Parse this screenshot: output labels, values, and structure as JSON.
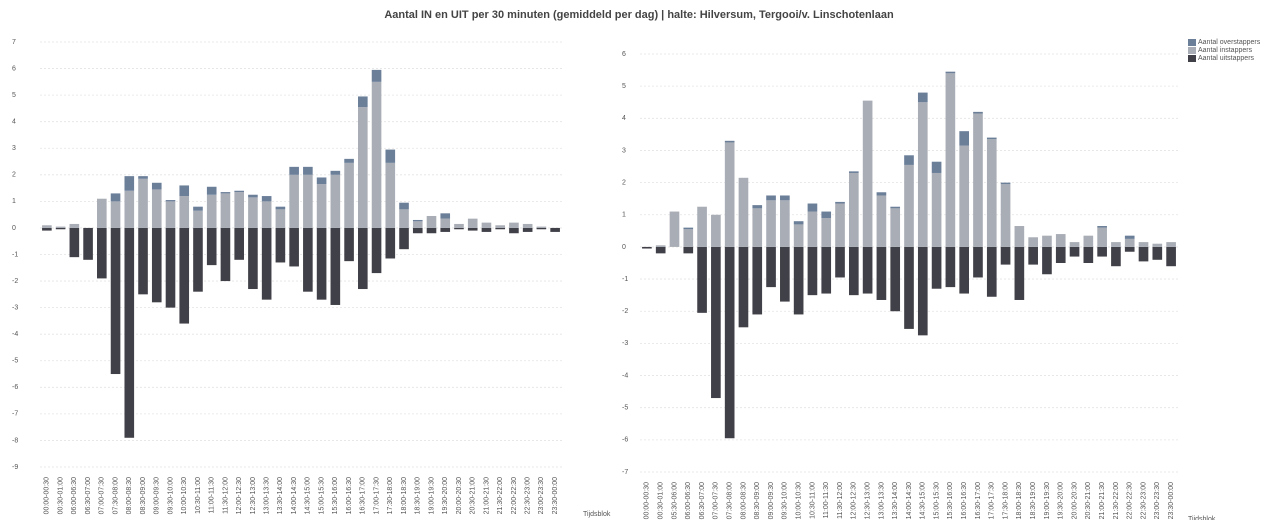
{
  "title": "Aantal IN en UIT per 30 minuten (gemiddeld per dag) | halte: Hilversum, Tergooi/v. Linschotenlaan",
  "chart_data": [
    {
      "type": "bar",
      "stacked": true,
      "x_label": "Tijdsblok",
      "grid": true,
      "ylim": [
        -9,
        7
      ],
      "yticks": [
        -9,
        -8,
        -7,
        -6,
        -5,
        -4,
        -3,
        -2,
        -1,
        0,
        1,
        2,
        3,
        4,
        5,
        6,
        7
      ],
      "categories": [
        "00:00-00:30",
        "00:30-01:00",
        "06:00-06:30",
        "06:30-07:00",
        "07:00-07:30",
        "07:30-08:00",
        "08:00-08:30",
        "08:30-09:00",
        "09:00-09:30",
        "09:30-10:00",
        "10:00-10:30",
        "10:30-11:00",
        "11:00-11:30",
        "11:30-12:00",
        "12:00-12:30",
        "12:30-13:00",
        "13:00-13:30",
        "13:30-14:00",
        "14:00-14:30",
        "14:30-15:00",
        "15:00-15:30",
        "15:30-16:00",
        "16:00-16:30",
        "16:30-17:00",
        "17:00-17:30",
        "17:30-18:00",
        "18:00-18:30",
        "18:30-19:00",
        "19:00-19:30",
        "19:30-20:00",
        "20:00-20:30",
        "20:30-21:00",
        "21:00-21:30",
        "21:30-22:00",
        "22:00-22:30",
        "22:30-23:00",
        "23:00-23:30",
        "23:30-00:00"
      ],
      "series": [
        {
          "color": "#6b7f99",
          "values": [
            0,
            0,
            0,
            0,
            0,
            0.3,
            0.55,
            0.1,
            0.25,
            0.05,
            0.4,
            0.15,
            0.3,
            0.05,
            0.05,
            0.1,
            0.2,
            0.1,
            0.3,
            0.3,
            0.25,
            0.15,
            0.15,
            0.4,
            0.45,
            0.5,
            0.25,
            0.05,
            0,
            0.2,
            0,
            0,
            0,
            0,
            0,
            0,
            0,
            0
          ]
        },
        {
          "color": "#a9adb5",
          "values": [
            0.1,
            0.05,
            0.15,
            0,
            1.1,
            1.0,
            1.4,
            1.85,
            1.45,
            1.0,
            1.2,
            0.65,
            1.25,
            1.3,
            1.35,
            1.15,
            1.0,
            0.7,
            2.0,
            2.0,
            1.65,
            2.0,
            2.45,
            4.55,
            5.5,
            2.45,
            0.7,
            0.25,
            0.45,
            0.35,
            0.15,
            0.35,
            0.2,
            0.1,
            0.2,
            0.15,
            0.05,
            0
          ]
        },
        {
          "color": "#404048",
          "values": [
            -0.1,
            -0.05,
            -1.1,
            -1.2,
            -1.9,
            -5.5,
            -7.9,
            -2.5,
            -2.8,
            -3.0,
            -3.6,
            -2.4,
            -1.4,
            -2.0,
            -1.2,
            -2.3,
            -2.7,
            -1.3,
            -1.45,
            -2.4,
            -2.7,
            -2.9,
            -1.25,
            -2.3,
            -1.7,
            -1.15,
            -0.8,
            -0.2,
            -0.2,
            -0.15,
            -0.05,
            -0.1,
            -0.15,
            -0.05,
            -0.2,
            -0.15,
            -0.05,
            -0.15
          ]
        }
      ]
    },
    {
      "type": "bar",
      "stacked": true,
      "x_label": "Tijdsblok",
      "grid": true,
      "legend": "top-right",
      "ylim": [
        -7,
        6
      ],
      "yticks": [
        -7,
        -6,
        -5,
        -4,
        -3,
        -2,
        -1,
        0,
        1,
        2,
        3,
        4,
        5,
        6
      ],
      "categories": [
        "00:00-00:30",
        "00:30-01:00",
        "05:30-06:00",
        "06:00-06:30",
        "06:30-07:00",
        "07:00-07:30",
        "07:30-08:00",
        "08:00-08:30",
        "08:30-09:00",
        "09:00-09:30",
        "09:30-10:00",
        "10:00-10:30",
        "10:30-11:00",
        "11:00-11:30",
        "11:30-12:00",
        "12:00-12:30",
        "12:30-13:00",
        "13:00-13:30",
        "13:30-14:00",
        "14:00-14:30",
        "14:30-15:00",
        "15:00-15:30",
        "15:30-16:00",
        "16:00-16:30",
        "16:30-17:00",
        "17:00-17:30",
        "17:30-18:00",
        "18:00-18:30",
        "18:30-19:00",
        "19:00-19:30",
        "19:30-20:00",
        "20:00-20:30",
        "20:30-21:00",
        "21:00-21:30",
        "21:30-22:00",
        "22:00-22:30",
        "22:30-23:00",
        "23:00-23:30",
        "23:30-00:00"
      ],
      "series": [
        {
          "name": "Aantal overstappers",
          "color": "#6b7f99",
          "values": [
            0,
            0,
            0,
            0.05,
            0,
            0,
            0.05,
            0,
            0.1,
            0.15,
            0.15,
            0.1,
            0.25,
            0.2,
            0.05,
            0.05,
            0,
            0.1,
            0.05,
            0.3,
            0.3,
            0.35,
            0.05,
            0.45,
            0.05,
            0.05,
            0.05,
            0,
            0,
            0,
            0,
            0,
            0,
            0.05,
            0,
            0.1,
            0,
            0,
            0
          ]
        },
        {
          "name": "Aantal instappers",
          "color": "#a9adb5",
          "values": [
            0,
            0.05,
            1.1,
            0.55,
            1.25,
            1.0,
            3.25,
            2.15,
            1.2,
            1.45,
            1.45,
            0.7,
            1.1,
            0.9,
            1.35,
            2.3,
            4.55,
            1.6,
            1.2,
            2.55,
            4.5,
            2.3,
            5.4,
            3.15,
            4.15,
            3.35,
            1.95,
            0.65,
            0.3,
            0.35,
            0.4,
            0.15,
            0.35,
            0.6,
            0.15,
            0.25,
            0.15,
            0.1,
            0.15
          ]
        },
        {
          "name": "Aantal uitstappers",
          "color": "#404048",
          "values": [
            -0.05,
            -0.2,
            0,
            -0.2,
            -2.05,
            -4.7,
            -5.95,
            -2.5,
            -2.1,
            -1.25,
            -1.7,
            -2.1,
            -1.5,
            -1.45,
            -0.95,
            -1.5,
            -1.45,
            -1.65,
            -2.0,
            -2.55,
            -2.75,
            -1.3,
            -1.25,
            -1.45,
            -0.95,
            -1.55,
            -0.55,
            -1.65,
            -0.55,
            -0.85,
            -0.5,
            -0.3,
            -0.5,
            -0.3,
            -0.6,
            -0.15,
            -0.45,
            -0.4,
            -0.6
          ]
        }
      ]
    }
  ]
}
